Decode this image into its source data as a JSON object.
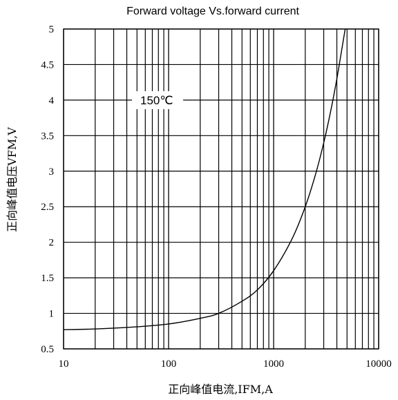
{
  "chart_data": {
    "type": "line",
    "title": "Forward voltage Vs.forward current",
    "xlabel": "正向峰值电流,IFM,A",
    "ylabel": "正向峰值电压VFM,V",
    "x_scale": "log",
    "xlim": [
      10,
      10000
    ],
    "ylim": [
      0.5,
      5
    ],
    "x_ticks": [
      10,
      100,
      1000,
      10000
    ],
    "x_tick_labels": [
      "10",
      "100",
      "1000",
      "10000"
    ],
    "y_ticks": [
      0.5,
      1,
      1.5,
      2,
      2.5,
      3,
      3.5,
      4,
      4.5,
      5
    ],
    "y_tick_labels": [
      "0.5",
      "1",
      "1.5",
      "2",
      "2.5",
      "3",
      "3.5",
      "4",
      "4.5",
      "5"
    ],
    "grid": true,
    "annotation": "150℃",
    "series": [
      {
        "x": [
          10,
          20,
          50,
          100,
          200,
          300,
          500,
          700,
          1000,
          1500,
          2000,
          2500,
          3000,
          3500,
          4000,
          4500,
          4800
        ],
        "y": [
          0.77,
          0.78,
          0.81,
          0.85,
          0.93,
          1.0,
          1.17,
          1.33,
          1.6,
          2.05,
          2.5,
          2.95,
          3.4,
          3.85,
          4.3,
          4.75,
          5.0
        ]
      }
    ]
  }
}
